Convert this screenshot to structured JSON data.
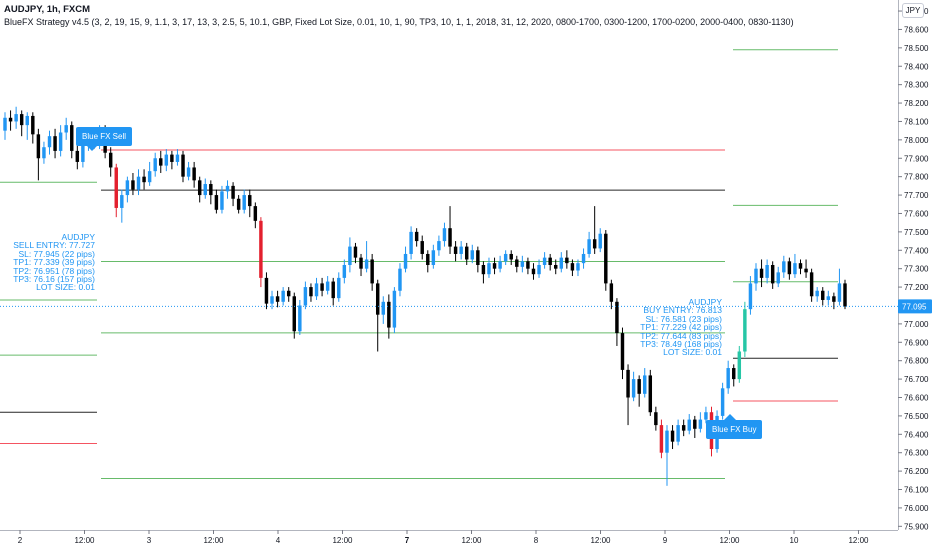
{
  "header": {
    "title": "AUDJPY, 1h, FXCM",
    "study": "BlueFX Strategy v4.5 (3, 2, 19, 15, 9, 1.1, 3, 17, 13, 3, 2.5, 5, 10.1, GBP, Fixed Lot Size, 0.01, 10, 1, 90, TP3, 10, 1, 1, 2018, 31, 12, 2020, 0800-1700, 0300-1200, 1700-0200, 2000-0400, 0830-1130)",
    "currency": "JPY"
  },
  "sell_info": {
    "lines": [
      "AUDJPY",
      "SELL ENTRY: 77.727",
      "SL: 77.945 (22 pips)",
      "TP1: 77.339 (39 pips)",
      "TP2: 76.951 (78 pips)",
      "TP3: 76.16 (157 pips)",
      "LOT SIZE: 0.01"
    ]
  },
  "buy_info": {
    "lines": [
      "AUDJPY",
      "BUY ENTRY: 76.813",
      "SL: 76.581 (23 pips)",
      "TP1: 77.229 (42 pips)",
      "TP2: 77.644 (83 pips)",
      "TP3: 78.49 (168 pips)",
      "LOT SIZE: 0.01"
    ]
  },
  "labels": {
    "sell": "Blue FX Sell",
    "buy": "Blue FX Buy"
  },
  "colors": {
    "up": "#2196f3",
    "down": "#000000",
    "signal_down": "#e3202e",
    "signal_up": "#26c6a6",
    "tp": "#4caf50",
    "sl": "#f23645",
    "entry": "#000000",
    "last": "#2196f3"
  },
  "chart_data": {
    "type": "candlestick",
    "y_ticks": [
      75.9,
      76.0,
      76.1,
      76.2,
      76.3,
      76.4,
      76.5,
      76.6,
      76.7,
      76.8,
      76.9,
      77.0,
      77.1,
      77.2,
      77.3,
      77.4,
      77.5,
      77.6,
      77.7,
      77.8,
      77.9,
      78.0,
      78.1,
      78.2,
      78.3,
      78.4,
      78.5,
      78.6,
      78.7
    ],
    "y_tick_labels": [
      "75.900",
      "76.000",
      "76.100",
      "76.200",
      "76.300",
      "76.400",
      "76.500",
      "76.600",
      "76.700",
      "76.800",
      "76.900",
      "77.000",
      "77.100",
      "77.200",
      "77.300",
      "77.400",
      "77.500",
      "77.600",
      "77.700",
      "77.800",
      "77.900",
      "78.000",
      "78.100",
      "78.200",
      "78.300",
      "78.400",
      "78.500",
      "78.600",
      "78.700"
    ],
    "x_ticks": [
      "2",
      "12:00",
      "3",
      "12:00",
      "4",
      "12:00",
      "7",
      "12:00",
      "8",
      "12:00",
      "9",
      "12:00",
      "10",
      "12:00"
    ],
    "bold_ticks": [
      "7"
    ],
    "last_price": "77.095",
    "ylim": [
      75.88,
      78.76
    ],
    "sell_levels": [
      {
        "kind": "sl",
        "value": 77.945
      },
      {
        "kind": "entry",
        "value": 77.727
      },
      {
        "kind": "tp",
        "value": 77.339
      },
      {
        "kind": "tp",
        "value": 76.951
      },
      {
        "kind": "tp",
        "value": 76.16
      }
    ],
    "buy_levels": [
      {
        "kind": "tp",
        "value": 78.49
      },
      {
        "kind": "tp",
        "value": 77.644
      },
      {
        "kind": "tp",
        "value": 77.229
      },
      {
        "kind": "entry",
        "value": 76.813
      },
      {
        "kind": "sl",
        "value": 76.581
      }
    ],
    "prev_levels": [
      {
        "kind": "tp",
        "value": 77.77
      },
      {
        "kind": "tp",
        "value": 77.13
      },
      {
        "kind": "tp",
        "value": 76.83
      },
      {
        "kind": "entry",
        "value": 76.52
      },
      {
        "kind": "sl",
        "value": 76.35
      }
    ],
    "candles": [
      [
        78.05,
        78.12,
        78.15,
        78.0,
        0
      ],
      [
        78.12,
        78.1,
        78.16,
        78.05,
        0
      ],
      [
        78.1,
        78.14,
        78.18,
        78.06,
        0
      ],
      [
        78.14,
        78.08,
        78.16,
        78.02,
        0
      ],
      [
        78.08,
        78.13,
        78.15,
        78.0,
        0
      ],
      [
        78.13,
        78.03,
        78.15,
        77.98,
        0
      ],
      [
        78.03,
        77.9,
        78.06,
        77.78,
        0
      ],
      [
        77.9,
        77.96,
        77.99,
        77.87,
        0
      ],
      [
        77.96,
        78.02,
        78.05,
        77.92,
        0
      ],
      [
        78.02,
        77.94,
        78.06,
        77.9,
        0
      ],
      [
        77.94,
        78.04,
        78.08,
        77.91,
        0
      ],
      [
        78.04,
        78.08,
        78.12,
        78.0,
        0
      ],
      [
        78.08,
        77.94,
        78.1,
        77.9,
        0
      ],
      [
        77.94,
        77.88,
        77.98,
        77.84,
        0
      ],
      [
        77.88,
        77.98,
        78.03,
        77.85,
        0
      ],
      [
        77.98,
        78.02,
        78.05,
        77.94,
        0
      ],
      [
        78.02,
        77.98,
        78.06,
        77.95,
        0
      ],
      [
        77.98,
        78.05,
        78.08,
        77.95,
        0
      ],
      [
        78.05,
        77.93,
        78.08,
        77.9,
        0
      ],
      [
        77.93,
        77.85,
        77.96,
        77.8,
        0
      ],
      [
        77.85,
        77.63,
        77.87,
        77.58,
        1
      ],
      [
        77.63,
        77.7,
        77.73,
        77.55,
        0
      ],
      [
        77.7,
        77.78,
        77.8,
        77.66,
        0
      ],
      [
        77.78,
        77.73,
        77.82,
        77.7,
        0
      ],
      [
        77.73,
        77.8,
        77.84,
        77.7,
        0
      ],
      [
        77.8,
        77.77,
        77.84,
        77.73,
        0
      ],
      [
        77.77,
        77.83,
        77.88,
        77.75,
        0
      ],
      [
        77.83,
        77.9,
        77.93,
        77.8,
        0
      ],
      [
        77.9,
        77.86,
        77.94,
        77.82,
        0
      ],
      [
        77.86,
        77.92,
        77.95,
        77.83,
        0
      ],
      [
        77.92,
        77.88,
        77.94,
        77.84,
        0
      ],
      [
        77.88,
        77.92,
        77.95,
        77.86,
        0
      ],
      [
        77.92,
        77.8,
        77.94,
        77.77,
        0
      ],
      [
        77.8,
        77.85,
        77.88,
        77.78,
        0
      ],
      [
        77.85,
        77.78,
        77.88,
        77.74,
        0
      ],
      [
        77.78,
        77.7,
        77.8,
        77.66,
        0
      ],
      [
        77.7,
        77.76,
        77.79,
        77.68,
        0
      ],
      [
        77.76,
        77.7,
        77.78,
        77.65,
        0
      ],
      [
        77.7,
        77.62,
        77.73,
        77.6,
        0
      ],
      [
        77.62,
        77.72,
        77.75,
        77.6,
        0
      ],
      [
        77.72,
        77.75,
        77.78,
        77.68,
        0
      ],
      [
        77.75,
        77.68,
        77.77,
        77.64,
        0
      ],
      [
        77.68,
        77.62,
        77.7,
        77.6,
        0
      ],
      [
        77.62,
        77.7,
        77.73,
        77.6,
        0
      ],
      [
        77.7,
        77.64,
        77.73,
        77.58,
        0
      ],
      [
        77.64,
        77.56,
        77.66,
        77.52,
        0
      ],
      [
        77.56,
        77.25,
        77.58,
        77.2,
        1
      ],
      [
        77.25,
        77.11,
        77.28,
        77.08,
        0
      ],
      [
        77.11,
        77.15,
        77.18,
        77.08,
        0
      ],
      [
        77.15,
        77.12,
        77.18,
        77.09,
        0
      ],
      [
        77.12,
        77.18,
        77.2,
        77.1,
        0
      ],
      [
        77.18,
        77.15,
        77.2,
        77.12,
        0
      ],
      [
        77.15,
        76.96,
        77.17,
        76.92,
        0
      ],
      [
        76.96,
        77.1,
        77.13,
        76.94,
        0
      ],
      [
        77.1,
        77.2,
        77.23,
        77.08,
        0
      ],
      [
        77.2,
        77.15,
        77.22,
        77.12,
        0
      ],
      [
        77.15,
        77.22,
        77.25,
        77.13,
        0
      ],
      [
        77.22,
        77.18,
        77.25,
        77.15,
        0
      ],
      [
        77.18,
        77.23,
        77.26,
        77.16,
        0
      ],
      [
        77.23,
        77.14,
        77.25,
        77.1,
        0
      ],
      [
        77.14,
        77.25,
        77.28,
        77.12,
        0
      ],
      [
        77.25,
        77.32,
        77.35,
        77.22,
        0
      ],
      [
        77.32,
        77.42,
        77.47,
        77.28,
        0
      ],
      [
        77.42,
        77.36,
        77.44,
        77.33,
        0
      ],
      [
        77.36,
        77.3,
        77.38,
        77.26,
        0
      ],
      [
        77.3,
        77.35,
        77.45,
        77.28,
        0
      ],
      [
        77.35,
        77.22,
        77.38,
        77.18,
        0
      ],
      [
        77.22,
        77.05,
        77.24,
        76.85,
        0
      ],
      [
        77.05,
        77.12,
        77.15,
        77.0,
        0
      ],
      [
        77.12,
        76.98,
        77.16,
        76.92,
        0
      ],
      [
        76.98,
        77.18,
        77.2,
        76.95,
        0
      ],
      [
        77.18,
        77.3,
        77.33,
        77.15,
        0
      ],
      [
        77.3,
        77.38,
        77.42,
        77.28,
        0
      ],
      [
        77.38,
        77.5,
        77.53,
        77.35,
        0
      ],
      [
        77.5,
        77.45,
        77.52,
        77.42,
        0
      ],
      [
        77.45,
        77.38,
        77.48,
        77.35,
        0
      ],
      [
        77.38,
        77.32,
        77.4,
        77.28,
        0
      ],
      [
        77.32,
        77.4,
        77.43,
        77.3,
        0
      ],
      [
        77.4,
        77.45,
        77.48,
        77.37,
        0
      ],
      [
        77.45,
        77.52,
        77.55,
        77.42,
        0
      ],
      [
        77.52,
        77.42,
        77.64,
        77.38,
        0
      ],
      [
        77.42,
        77.38,
        77.45,
        77.34,
        0
      ],
      [
        77.38,
        77.42,
        77.45,
        77.35,
        0
      ],
      [
        77.42,
        77.35,
        77.44,
        77.32,
        0
      ],
      [
        77.35,
        77.4,
        77.43,
        77.33,
        0
      ],
      [
        77.4,
        77.32,
        77.42,
        77.28,
        0
      ],
      [
        77.32,
        77.27,
        77.34,
        77.22,
        0
      ],
      [
        77.27,
        77.33,
        77.36,
        77.25,
        0
      ],
      [
        77.33,
        77.3,
        77.36,
        77.27,
        0
      ],
      [
        77.3,
        77.34,
        77.37,
        77.28,
        0
      ],
      [
        77.34,
        77.38,
        77.4,
        77.32,
        0
      ],
      [
        77.38,
        77.35,
        77.4,
        77.32,
        0
      ],
      [
        77.35,
        77.31,
        77.37,
        77.28,
        0
      ],
      [
        77.31,
        77.34,
        77.37,
        77.28,
        0
      ],
      [
        77.34,
        77.3,
        77.36,
        77.27,
        0
      ],
      [
        77.3,
        77.27,
        77.33,
        77.24,
        0
      ],
      [
        77.27,
        77.32,
        77.35,
        77.25,
        0
      ],
      [
        77.32,
        77.36,
        77.39,
        77.3,
        0
      ],
      [
        77.36,
        77.32,
        77.38,
        77.29,
        0
      ],
      [
        77.32,
        77.3,
        77.35,
        77.27,
        0
      ],
      [
        77.3,
        77.36,
        77.39,
        77.28,
        0
      ],
      [
        77.36,
        77.33,
        77.4,
        77.3,
        0
      ],
      [
        77.33,
        77.29,
        77.35,
        77.26,
        0
      ],
      [
        77.29,
        77.33,
        77.35,
        77.26,
        0
      ],
      [
        77.33,
        77.38,
        77.41,
        77.3,
        0
      ],
      [
        77.38,
        77.46,
        77.5,
        77.36,
        0
      ],
      [
        77.46,
        77.41,
        77.64,
        77.38,
        0
      ],
      [
        77.41,
        77.49,
        77.52,
        77.39,
        0
      ],
      [
        77.49,
        77.22,
        77.51,
        77.18,
        0
      ],
      [
        77.22,
        77.12,
        77.24,
        77.08,
        0
      ],
      [
        77.12,
        76.95,
        77.14,
        76.88,
        0
      ],
      [
        76.95,
        76.75,
        76.98,
        76.7,
        0
      ],
      [
        76.75,
        76.6,
        76.78,
        76.45,
        0
      ],
      [
        76.6,
        76.7,
        76.74,
        76.58,
        0
      ],
      [
        76.7,
        76.62,
        76.72,
        76.55,
        0
      ],
      [
        76.62,
        76.72,
        76.76,
        76.6,
        0
      ],
      [
        76.72,
        76.52,
        76.75,
        76.5,
        0
      ],
      [
        76.52,
        76.45,
        76.55,
        76.42,
        0
      ],
      [
        76.45,
        76.3,
        76.48,
        76.27,
        1
      ],
      [
        76.3,
        76.42,
        76.45,
        76.12,
        0
      ],
      [
        76.42,
        76.36,
        76.45,
        76.32,
        0
      ],
      [
        76.36,
        76.45,
        76.48,
        76.34,
        0
      ],
      [
        76.45,
        76.42,
        76.48,
        76.39,
        0
      ],
      [
        76.42,
        76.48,
        76.51,
        76.4,
        0
      ],
      [
        76.48,
        76.43,
        76.5,
        76.38,
        0
      ],
      [
        76.43,
        76.48,
        76.52,
        76.41,
        0
      ],
      [
        76.48,
        76.52,
        76.55,
        76.46,
        0
      ],
      [
        76.52,
        76.32,
        76.55,
        76.28,
        1
      ],
      [
        76.32,
        76.5,
        76.53,
        76.3,
        0
      ],
      [
        76.5,
        76.65,
        76.68,
        76.48,
        0
      ],
      [
        76.65,
        76.76,
        76.8,
        76.62,
        0
      ],
      [
        76.76,
        76.7,
        76.78,
        76.66,
        0
      ],
      [
        76.7,
        76.85,
        76.88,
        76.68,
        2
      ],
      [
        76.85,
        77.08,
        77.12,
        76.82,
        2
      ],
      [
        77.08,
        77.22,
        77.26,
        77.05,
        0
      ],
      [
        77.22,
        77.3,
        77.33,
        77.18,
        0
      ],
      [
        77.3,
        77.25,
        77.35,
        77.2,
        0
      ],
      [
        77.25,
        77.32,
        77.35,
        77.22,
        0
      ],
      [
        77.32,
        77.22,
        77.34,
        77.19,
        0
      ],
      [
        77.22,
        77.28,
        77.31,
        77.2,
        0
      ],
      [
        77.28,
        77.34,
        77.37,
        77.25,
        0
      ],
      [
        77.34,
        77.27,
        77.36,
        77.24,
        0
      ],
      [
        77.27,
        77.33,
        77.38,
        77.25,
        0
      ],
      [
        77.33,
        77.3,
        77.35,
        77.27,
        0
      ],
      [
        77.3,
        77.28,
        77.35,
        77.25,
        0
      ],
      [
        77.28,
        77.15,
        77.3,
        77.12,
        0
      ],
      [
        77.15,
        77.18,
        77.2,
        77.12,
        0
      ],
      [
        77.18,
        77.13,
        77.2,
        77.1,
        0
      ],
      [
        77.13,
        77.15,
        77.18,
        77.1,
        0
      ],
      [
        77.15,
        77.12,
        77.17,
        77.08,
        0
      ],
      [
        77.12,
        77.22,
        77.3,
        77.1,
        0
      ],
      [
        77.22,
        77.095,
        77.24,
        77.08,
        0
      ]
    ]
  }
}
